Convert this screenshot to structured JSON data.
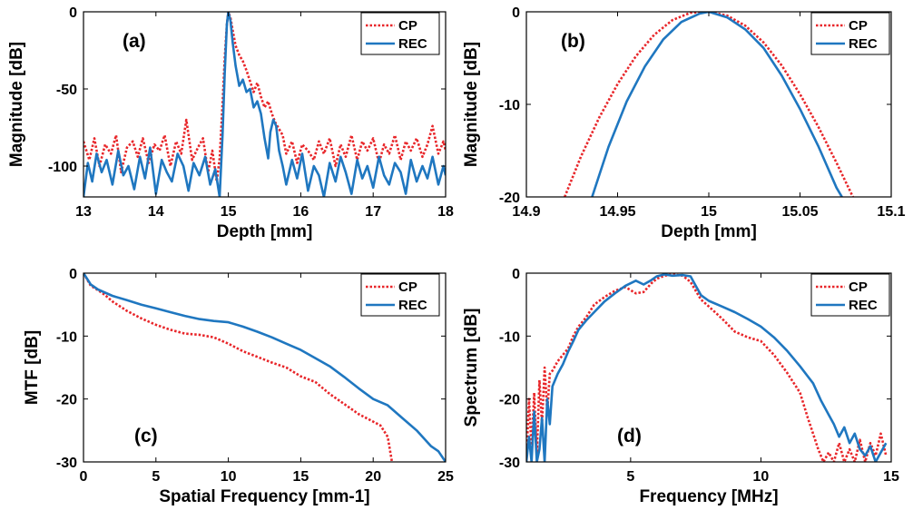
{
  "colors": {
    "cp": "#e8262a",
    "rec": "#1f77c0",
    "axis": "#000000"
  },
  "chart_data": [
    {
      "id": "a",
      "type": "line",
      "panel_label": "(a)",
      "xlabel": "Depth [mm]",
      "ylabel": "Magnitude [dB]",
      "xlim": [
        13,
        18
      ],
      "ylim": [
        -120,
        0
      ],
      "xticks": [
        13,
        14,
        15,
        16,
        17,
        18
      ],
      "xtick_labels": [
        "13",
        "14",
        "15",
        "16",
        "17",
        "18"
      ],
      "yticks": [
        0,
        -50,
        -100
      ],
      "ytick_labels": [
        "0",
        "-50",
        "-100"
      ],
      "legend": [
        "CP",
        "REC"
      ],
      "series": [
        {
          "name": "CP",
          "x": [
            13.0,
            13.08,
            13.15,
            13.22,
            13.3,
            13.38,
            13.45,
            13.52,
            13.6,
            13.68,
            13.75,
            13.82,
            13.9,
            13.98,
            14.05,
            14.12,
            14.2,
            14.28,
            14.35,
            14.42,
            14.5,
            14.58,
            14.65,
            14.72,
            14.78,
            14.84,
            14.88,
            14.92,
            14.95,
            14.98,
            15.0,
            15.03,
            15.06,
            15.1,
            15.15,
            15.2,
            15.25,
            15.3,
            15.35,
            15.4,
            15.45,
            15.5,
            15.55,
            15.6,
            15.65,
            15.7,
            15.75,
            15.8,
            15.88,
            15.95,
            16.02,
            16.1,
            16.18,
            16.25,
            16.32,
            16.4,
            16.48,
            16.55,
            16.62,
            16.7,
            16.78,
            16.85,
            16.92,
            17.0,
            17.08,
            17.15,
            17.22,
            17.3,
            17.38,
            17.45,
            17.52,
            17.6,
            17.68,
            17.75,
            17.82,
            17.9,
            17.97,
            18.0
          ],
          "y": [
            -84,
            -96,
            -82,
            -100,
            -86,
            -92,
            -80,
            -104,
            -88,
            -84,
            -94,
            -82,
            -98,
            -86,
            -90,
            -80,
            -100,
            -84,
            -92,
            -70,
            -96,
            -88,
            -82,
            -104,
            -90,
            -110,
            -95,
            -60,
            -30,
            -8,
            0,
            -4,
            -12,
            -22,
            -28,
            -32,
            -38,
            -45,
            -52,
            -46,
            -55,
            -62,
            -58,
            -66,
            -72,
            -76,
            -80,
            -92,
            -84,
            -98,
            -86,
            -90,
            -96,
            -84,
            -92,
            -82,
            -100,
            -86,
            -94,
            -80,
            -96,
            -84,
            -90,
            -82,
            -98,
            -86,
            -92,
            -80,
            -96,
            -84,
            -90,
            -82,
            -94,
            -86,
            -74,
            -92,
            -84,
            -90
          ]
        },
        {
          "name": "REC",
          "x": [
            13.0,
            13.06,
            13.12,
            13.18,
            13.25,
            13.32,
            13.4,
            13.48,
            13.55,
            13.62,
            13.7,
            13.78,
            13.85,
            13.92,
            14.0,
            14.08,
            14.15,
            14.22,
            14.3,
            14.38,
            14.45,
            14.52,
            14.6,
            14.68,
            14.75,
            14.82,
            14.88,
            14.92,
            14.95,
            14.98,
            15.0,
            15.03,
            15.06,
            15.1,
            15.15,
            15.2,
            15.25,
            15.3,
            15.35,
            15.4,
            15.45,
            15.5,
            15.55,
            15.58,
            15.62,
            15.66,
            15.7,
            15.75,
            15.8,
            15.88,
            15.95,
            16.02,
            16.1,
            16.18,
            16.25,
            16.32,
            16.4,
            16.48,
            16.55,
            16.62,
            16.7,
            16.78,
            16.85,
            16.92,
            17.0,
            17.08,
            17.15,
            17.22,
            17.3,
            17.38,
            17.45,
            17.52,
            17.6,
            17.68,
            17.75,
            17.82,
            17.9,
            17.97,
            18.0
          ],
          "y": [
            -120,
            -98,
            -110,
            -92,
            -104,
            -96,
            -112,
            -90,
            -106,
            -100,
            -115,
            -94,
            -108,
            -88,
            -118,
            -96,
            -104,
            -110,
            -92,
            -100,
            -116,
            -98,
            -106,
            -94,
            -112,
            -102,
            -120,
            -80,
            -40,
            -8,
            0,
            -6,
            -20,
            -35,
            -48,
            -44,
            -52,
            -50,
            -62,
            -58,
            -66,
            -82,
            -95,
            -78,
            -70,
            -74,
            -90,
            -100,
            -112,
            -96,
            -108,
            -92,
            -116,
            -100,
            -106,
            -120,
            -98,
            -110,
            -94,
            -104,
            -118,
            -96,
            -108,
            -100,
            -114,
            -94,
            -106,
            -112,
            -98,
            -104,
            -118,
            -96,
            -110,
            -100,
            -108,
            -94,
            -112,
            -100,
            -106
          ]
        }
      ]
    },
    {
      "id": "b",
      "type": "line",
      "panel_label": "(b)",
      "xlabel": "Depth [mm]",
      "ylabel": "Magnitude [dB]",
      "xlim": [
        14.9,
        15.1
      ],
      "ylim": [
        -20,
        0
      ],
      "xticks": [
        14.9,
        14.95,
        15.0,
        15.05,
        15.1
      ],
      "xtick_labels": [
        "14.9",
        "14.95",
        "15",
        "15.05",
        "15.1"
      ],
      "yticks": [
        0,
        -10,
        -20
      ],
      "ytick_labels": [
        "0",
        "-10",
        "-20"
      ],
      "legend": [
        "CP",
        "REC"
      ],
      "series": [
        {
          "name": "CP",
          "x": [
            14.921,
            14.93,
            14.94,
            14.95,
            14.96,
            14.97,
            14.98,
            14.99,
            15.0,
            15.01,
            15.02,
            15.03,
            15.04,
            15.05,
            15.06,
            15.07,
            15.079
          ],
          "y": [
            -20,
            -15.6,
            -11.4,
            -7.8,
            -4.8,
            -2.5,
            -0.9,
            -0.1,
            0,
            -0.4,
            -1.5,
            -3.3,
            -5.8,
            -8.9,
            -12.4,
            -16.3,
            -20
          ]
        },
        {
          "name": "REC",
          "x": [
            14.936,
            14.945,
            14.955,
            14.965,
            14.975,
            14.985,
            14.995,
            15.0,
            15.01,
            15.02,
            15.03,
            15.04,
            15.05,
            15.06,
            15.07,
            15.073
          ],
          "y": [
            -20,
            -14.6,
            -9.7,
            -5.9,
            -3.0,
            -1.1,
            -0.2,
            0,
            -0.6,
            -1.9,
            -3.9,
            -6.9,
            -10.5,
            -14.5,
            -19.0,
            -20
          ]
        }
      ]
    },
    {
      "id": "c",
      "type": "line",
      "panel_label": "(c)",
      "xlabel": "Spatial Frequency [mm-1]",
      "ylabel": "MTF [dB]",
      "xlim": [
        0,
        25
      ],
      "ylim": [
        -30,
        0
      ],
      "xticks": [
        0,
        5,
        10,
        15,
        20,
        25
      ],
      "xtick_labels": [
        "0",
        "5",
        "10",
        "15",
        "20",
        "25"
      ],
      "yticks": [
        0,
        -10,
        -20,
        -30
      ],
      "ytick_labels": [
        "0",
        "-10",
        "-20",
        "-30"
      ],
      "legend": [
        "CP",
        "REC"
      ],
      "series": [
        {
          "name": "CP",
          "x": [
            0,
            0.5,
            1,
            1.5,
            2,
            3,
            4,
            5,
            6,
            7,
            8,
            9,
            10,
            11,
            12,
            13,
            14,
            15,
            16,
            17,
            18,
            19,
            20,
            20.5,
            21,
            21.3
          ],
          "y": [
            0,
            -2,
            -2.7,
            -3.5,
            -4.5,
            -6,
            -7.2,
            -8.2,
            -9,
            -9.6,
            -9.8,
            -10.2,
            -11.2,
            -12.4,
            -13.3,
            -14.2,
            -15,
            -16.4,
            -17.3,
            -19.2,
            -20.8,
            -22.4,
            -23.6,
            -24.2,
            -26,
            -30
          ]
        },
        {
          "name": "REC",
          "x": [
            0,
            0.5,
            1,
            1.5,
            2,
            3,
            4,
            5,
            6,
            7,
            8,
            9,
            10,
            11,
            12,
            13,
            14,
            15,
            16,
            17,
            18,
            19,
            20,
            21,
            22,
            23,
            24,
            24.5,
            25
          ],
          "y": [
            0,
            -1.8,
            -2.6,
            -3.1,
            -3.6,
            -4.3,
            -5,
            -5.6,
            -6.2,
            -6.8,
            -7.3,
            -7.6,
            -7.8,
            -8.5,
            -9.3,
            -10.2,
            -11.2,
            -12.2,
            -13.5,
            -14.8,
            -16.5,
            -18.3,
            -20,
            -21,
            -23,
            -25,
            -27.5,
            -28.3,
            -30
          ]
        }
      ]
    },
    {
      "id": "d",
      "type": "line",
      "panel_label": "(d)",
      "xlabel": "Frequency [MHz]",
      "ylabel": "Spectrum [dB]",
      "xlim": [
        1,
        15
      ],
      "ylim": [
        -30,
        0
      ],
      "xticks": [
        5,
        10,
        15
      ],
      "xtick_labels": [
        "5",
        "10",
        "15"
      ],
      "yticks": [
        0,
        -10,
        -20,
        -30
      ],
      "ytick_labels": [
        "0",
        "-10",
        "-20",
        "-30"
      ],
      "legend": [
        "CP",
        "REC"
      ],
      "series": [
        {
          "name": "CP",
          "x": [
            1.0,
            1.1,
            1.2,
            1.3,
            1.4,
            1.5,
            1.6,
            1.7,
            1.8,
            1.9,
            2.0,
            2.2,
            2.4,
            2.6,
            2.8,
            3.0,
            3.3,
            3.6,
            4.0,
            4.4,
            4.8,
            5.2,
            5.5,
            5.8,
            6.0,
            6.3,
            6.6,
            7.0,
            7.3,
            7.5,
            7.7,
            8.0,
            8.5,
            9.0,
            9.5,
            10.0,
            10.5,
            11.0,
            11.5,
            11.8,
            12.0,
            12.2,
            12.4,
            12.6,
            12.8,
            13.0,
            13.2,
            13.4,
            13.6,
            13.8,
            14.0,
            14.2,
            14.4,
            14.6,
            14.8
          ],
          "y": [
            -30,
            -20,
            -28,
            -19,
            -29,
            -17,
            -24,
            -15,
            -22,
            -16,
            -15.5,
            -14,
            -13,
            -12,
            -10,
            -8.5,
            -7,
            -5,
            -3.8,
            -2.8,
            -2.2,
            -3.2,
            -3,
            -1.6,
            -0.9,
            -0.4,
            -0.2,
            -0.4,
            -1.4,
            -2.8,
            -4.2,
            -5.3,
            -7.2,
            -9.3,
            -10.2,
            -10.8,
            -13,
            -15.8,
            -19,
            -23,
            -25.5,
            -28,
            -30,
            -28.5,
            -30,
            -27,
            -30,
            -28,
            -30,
            -26.5,
            -30,
            -27,
            -29,
            -25.5,
            -29
          ]
        },
        {
          "name": "REC",
          "x": [
            1.0,
            1.1,
            1.2,
            1.3,
            1.4,
            1.5,
            1.6,
            1.7,
            1.8,
            1.9,
            2.0,
            2.2,
            2.4,
            2.6,
            2.8,
            3.0,
            3.3,
            3.6,
            4.0,
            4.4,
            4.8,
            5.2,
            5.5,
            5.8,
            6.0,
            6.3,
            6.6,
            7.0,
            7.3,
            7.5,
            7.7,
            8.0,
            8.5,
            9.0,
            9.5,
            10.0,
            10.5,
            11.0,
            11.5,
            12.0,
            12.3,
            12.6,
            12.8,
            13.0,
            13.2,
            13.4,
            13.6,
            13.8,
            14.0,
            14.2,
            14.4,
            14.6,
            14.8
          ],
          "y": [
            -30,
            -26,
            -30,
            -22,
            -30,
            -28,
            -23,
            -30,
            -20,
            -24,
            -18,
            -16,
            -14.5,
            -12.5,
            -10.8,
            -9,
            -7.5,
            -6.2,
            -4.5,
            -3.2,
            -2,
            -1.2,
            -1.8,
            -1.1,
            -0.5,
            -0.2,
            -0.4,
            -0.3,
            -0.5,
            -2,
            -3.5,
            -4.4,
            -5.3,
            -6.2,
            -7.3,
            -8.5,
            -10.2,
            -12.3,
            -14.8,
            -17.5,
            -20.2,
            -22.5,
            -24,
            -26,
            -24.5,
            -27,
            -25.5,
            -28,
            -29,
            -27.5,
            -30,
            -28.5,
            -27
          ]
        }
      ]
    }
  ]
}
